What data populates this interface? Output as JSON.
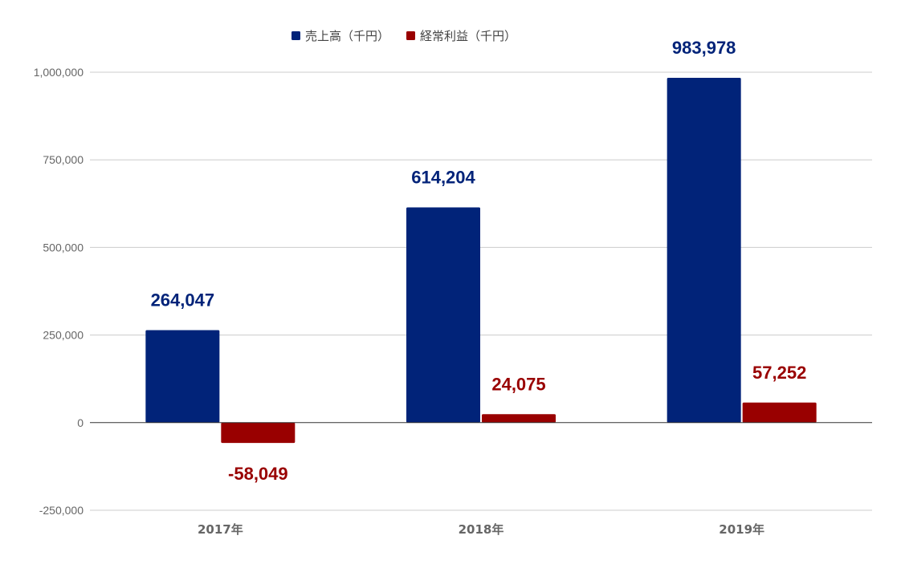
{
  "chart_data": {
    "type": "bar",
    "title": "",
    "xlabel": "",
    "ylabel": "",
    "categories": [
      "2017年",
      "2018年",
      "2019年"
    ],
    "series": [
      {
        "name": "売上高（千円）",
        "color": "#012379",
        "values": [
          264047,
          614204,
          983978
        ],
        "labels": [
          "264,047",
          "614,204",
          "983,978"
        ]
      },
      {
        "name": "経常利益（千円）",
        "color": "#990000",
        "values": [
          -58049,
          24075,
          57252
        ],
        "labels": [
          "-58,049",
          "24,075",
          "57,252"
        ]
      }
    ],
    "ylim": [
      -250000,
      1000000
    ],
    "yticks": [
      -250000,
      0,
      250000,
      500000,
      750000,
      1000000
    ],
    "ytick_labels": [
      "-250,000",
      "0",
      "250,000",
      "500,000",
      "750,000",
      "1,000,000"
    ],
    "grid": true,
    "legend_position": "top"
  }
}
